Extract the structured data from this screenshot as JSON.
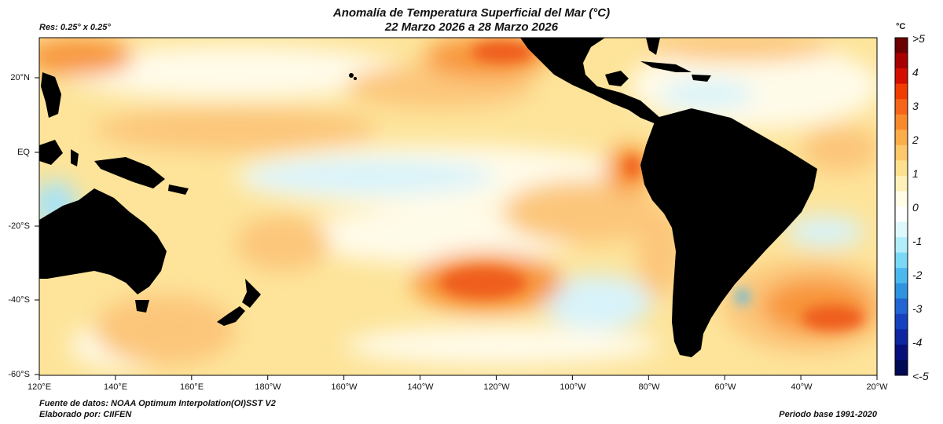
{
  "title_line1": "Anomalía de Temperatura Superficial del Mar (°C)",
  "title_line2": "22 Marzo 2026 a 28 Marzo 2026",
  "resolution": "Res: 0.25° x 0.25°",
  "colorbar": {
    "unit": "°C",
    "labels": [
      ">5",
      "4",
      "3",
      "2",
      "1",
      "0",
      "-1",
      "-2",
      "-3",
      "-4",
      "<-5"
    ],
    "colors": [
      "#6b0000",
      "#a80000",
      "#d40f00",
      "#f03c00",
      "#f56418",
      "#f88a2c",
      "#fbad4a",
      "#fcc86b",
      "#fde08e",
      "#fef0b8",
      "#fffde6",
      "#ffffff",
      "#def8fc",
      "#b2eefa",
      "#7cd9f6",
      "#4cb9ee",
      "#2f93e0",
      "#2165d2",
      "#1641be",
      "#0e26a0",
      "#06107a",
      "#000a55"
    ]
  },
  "axes": {
    "lat_labels": [
      "20°N",
      "EQ",
      "-20°S",
      "-40°S",
      "-60°S"
    ],
    "lon_labels": [
      "120°E",
      "140°E",
      "160°E",
      "180°W",
      "160°W",
      "140°W",
      "120°W",
      "100°W",
      "80°W",
      "60°W",
      "40°W",
      "20°W"
    ]
  },
  "footer": {
    "source": "Fuente de datos: NOAA Optimum Interpolation(OI)SST V2",
    "made_by": "Elaborado por: CIIFEN",
    "base_period": "Periodo base 1991-2020"
  },
  "anomaly_colors": {
    "ocean": "#fde49a",
    "neutral": "#fffbe9",
    "cool": "#d8f3fa",
    "cooler": "#a9e3f5",
    "warm": "#fcc67a",
    "hot": "#f8953a",
    "hotter": "#ef5d1c",
    "land": "#000000"
  }
}
